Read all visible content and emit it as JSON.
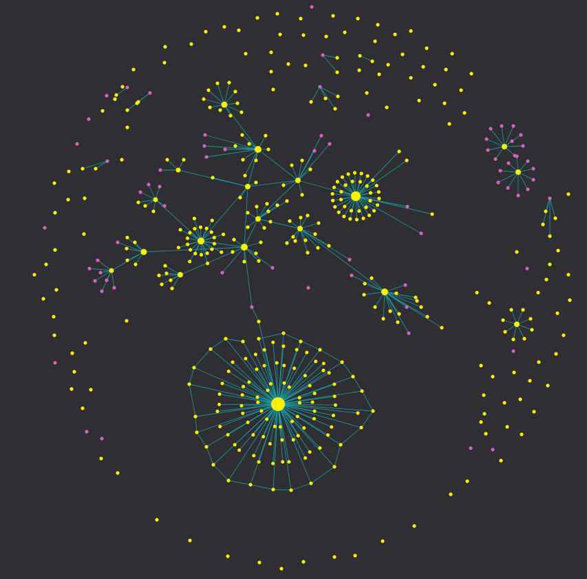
{
  "colors": {
    "background": "#2e2e33",
    "primary_node": "#ffef00",
    "secondary_node": "#d95fc1",
    "edge": "#1aa6ad"
  },
  "node_kinds": [
    "primary",
    "secondary"
  ],
  "hub_tiers": [
    "large",
    "medium",
    "small"
  ]
}
